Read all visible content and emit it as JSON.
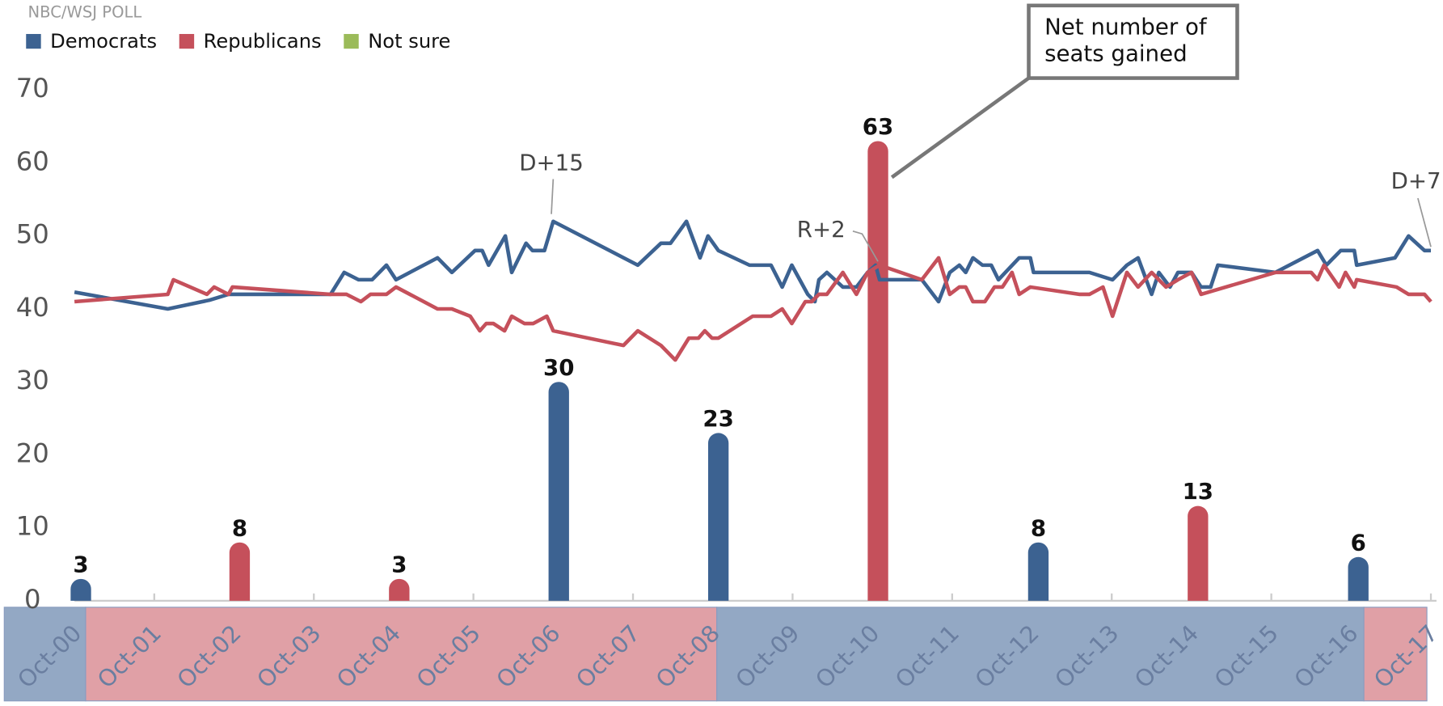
{
  "chart_data": {
    "type": "line",
    "subtitle": "NBC/WSJ POLL",
    "xlim": [
      2000.75,
      2017.75
    ],
    "xticks": [
      {
        "value": 2000.75,
        "label": "Oct-00"
      },
      {
        "value": 2001.75,
        "label": "Oct-01"
      },
      {
        "value": 2002.75,
        "label": "Oct-02"
      },
      {
        "value": 2003.75,
        "label": "Oct-03"
      },
      {
        "value": 2004.75,
        "label": "Oct-04"
      },
      {
        "value": 2005.75,
        "label": "Oct-05"
      },
      {
        "value": 2006.75,
        "label": "Oct-06"
      },
      {
        "value": 2007.75,
        "label": "Oct-07"
      },
      {
        "value": 2008.75,
        "label": "Oct-08"
      },
      {
        "value": 2009.75,
        "label": "Oct-09"
      },
      {
        "value": 2010.75,
        "label": "Oct-10"
      },
      {
        "value": 2011.75,
        "label": "Oct-11"
      },
      {
        "value": 2012.75,
        "label": "Oct-12"
      },
      {
        "value": 2013.75,
        "label": "Oct-13"
      },
      {
        "value": 2014.75,
        "label": "Oct-14"
      },
      {
        "value": 2015.75,
        "label": "Oct-15"
      },
      {
        "value": 2016.75,
        "label": "Oct-16"
      },
      {
        "value": 2017.75,
        "label": "Oct-17"
      }
    ],
    "ylim": [
      0,
      70
    ],
    "yticks": [
      0,
      10,
      20,
      30,
      40,
      50,
      60,
      70
    ],
    "series": [
      {
        "name": "Democrats",
        "color": "#3c6291",
        "x": [
          2000.75,
          2001.92,
          2002.44,
          2002.68,
          2003.96,
          2004.13,
          2004.31,
          2004.48,
          2004.66,
          2004.78,
          2005.3,
          2005.48,
          2005.77,
          2005.86,
          2005.94,
          2006.15,
          2006.23,
          2006.41,
          2006.49,
          2006.64,
          2006.75,
          2007.81,
          2008.1,
          2008.22,
          2008.42,
          2008.59,
          2008.69,
          2008.82,
          2009.21,
          2009.48,
          2009.62,
          2009.74,
          2009.94,
          2010.03,
          2010.08,
          2010.18,
          2010.38,
          2010.55,
          2010.69,
          2010.79,
          2010.84,
          2011.37,
          2011.58,
          2011.72,
          2011.84,
          2011.92,
          2012.01,
          2012.13,
          2012.24,
          2012.33,
          2012.59,
          2012.73,
          2012.77,
          2013.47,
          2013.76,
          2013.94,
          2014.08,
          2014.25,
          2014.34,
          2014.48,
          2014.58,
          2014.75,
          2014.87,
          2014.99,
          2015.08,
          2015.8,
          2016.33,
          2016.44,
          2016.62,
          2016.79,
          2016.82,
          2017.3,
          2017.47,
          2017.67,
          2017.75
        ],
        "values": [
          42.3,
          40,
          41.2,
          42,
          42,
          45,
          44,
          44,
          46,
          44,
          47,
          45,
          48,
          48,
          46,
          50,
          45,
          49,
          48,
          48,
          52,
          46,
          49,
          49,
          52,
          47,
          50,
          48,
          46,
          46,
          43,
          46,
          42,
          41,
          44,
          45,
          43,
          43,
          45,
          46,
          44,
          44,
          41,
          45,
          46,
          45,
          47,
          46,
          46,
          44,
          47,
          47,
          45,
          45,
          44,
          46,
          47,
          42,
          45,
          43,
          45,
          45,
          43,
          43,
          46,
          45,
          48,
          46,
          48,
          48,
          46,
          47,
          50,
          48,
          48
        ]
      },
      {
        "name": "Republicans",
        "color": "#c5505b",
        "x": [
          2000.75,
          2001.92,
          2001.99,
          2002.41,
          2002.5,
          2002.68,
          2002.73,
          2003.96,
          2004.16,
          2004.34,
          2004.46,
          2004.66,
          2004.78,
          2005.3,
          2005.48,
          2005.71,
          2005.83,
          2005.91,
          2006.0,
          2006.14,
          2006.23,
          2006.39,
          2006.5,
          2006.67,
          2006.75,
          2007.63,
          2007.81,
          2008.1,
          2008.28,
          2008.45,
          2008.57,
          2008.65,
          2008.74,
          2008.82,
          2009.25,
          2009.48,
          2009.62,
          2009.74,
          2009.91,
          2009.99,
          2010.08,
          2010.18,
          2010.38,
          2010.55,
          2010.69,
          2010.84,
          2011.37,
          2011.58,
          2011.72,
          2011.84,
          2011.92,
          2012.01,
          2012.16,
          2012.28,
          2012.38,
          2012.5,
          2012.59,
          2012.73,
          2013.35,
          2013.47,
          2013.64,
          2013.76,
          2013.94,
          2014.08,
          2014.25,
          2014.43,
          2014.58,
          2014.75,
          2014.87,
          2015.8,
          2016.25,
          2016.33,
          2016.41,
          2016.6,
          2016.68,
          2016.79,
          2016.82,
          2017.32,
          2017.47,
          2017.67,
          2017.75
        ],
        "values": [
          41,
          42,
          44,
          42,
          43,
          42,
          43,
          42,
          42,
          41,
          42,
          42,
          43,
          40,
          40,
          39,
          37,
          38,
          38,
          37,
          39,
          38,
          38,
          39,
          37,
          35,
          37,
          35,
          33,
          36,
          36,
          37,
          36,
          36,
          39,
          39,
          40,
          38,
          41,
          41,
          42,
          42,
          45,
          42,
          45,
          46,
          44,
          47,
          42,
          43,
          43,
          41,
          41,
          43,
          43,
          45,
          42,
          43,
          42,
          42,
          43,
          39,
          45,
          43,
          45,
          43,
          44,
          45,
          42,
          45,
          45,
          44,
          46,
          43,
          45,
          43,
          44,
          43,
          42,
          42,
          41
        ]
      },
      {
        "name": "Not sure",
        "color": "#9bbb59",
        "x": [],
        "values": []
      }
    ],
    "bars": {
      "x": [
        2000.83,
        2002.82,
        2004.82,
        2006.82,
        2008.82,
        2010.82,
        2012.83,
        2014.83,
        2016.84
      ],
      "values": [
        3,
        8,
        3,
        30,
        23,
        63,
        8,
        13,
        6
      ],
      "colors": [
        "#3c6291",
        "#c5505b",
        "#c5505b",
        "#3c6291",
        "#3c6291",
        "#c5505b",
        "#3c6291",
        "#c5505b",
        "#3c6291"
      ]
    },
    "bands": [
      {
        "start": 1999.87,
        "end": 2000.89,
        "color": "#93a8c4"
      },
      {
        "start": 2000.89,
        "end": 2008.8,
        "color": "#e0a0a6"
      },
      {
        "start": 2008.8,
        "end": 2016.91,
        "color": "#93a8c4"
      },
      {
        "start": 2016.91,
        "end": 2017.7,
        "color": "#e0a0a6"
      }
    ],
    "annotations": [
      {
        "text": "D+15",
        "x": 2006.75,
        "y": 52
      },
      {
        "text": "R+2",
        "x": 2010.82,
        "y": 45
      },
      {
        "text": "D+7",
        "x": 2017.75,
        "y": 48
      }
    ],
    "callout": {
      "lines": [
        "Net number of",
        "seats gained"
      ]
    }
  }
}
